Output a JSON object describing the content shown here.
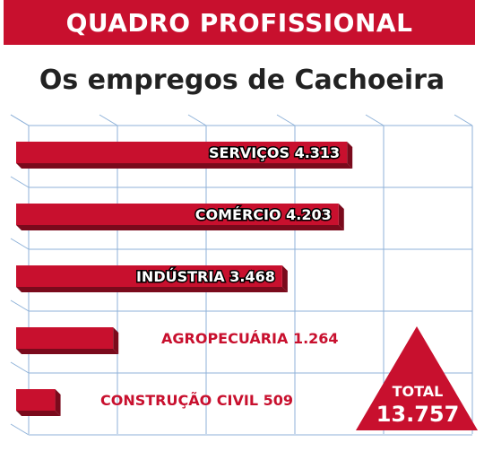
{
  "header": {
    "banner": "QUADRO PROFISSIONAL",
    "title": "Os empregos de Cachoeira"
  },
  "chart_data": {
    "type": "bar",
    "orientation": "horizontal",
    "categories": [
      "SERVIÇOS",
      "COMÉRCIO",
      "INDÚSTRIA",
      "AGROPECUÁRIA",
      "CONSTRUÇÃO CIVIL"
    ],
    "values": [
      4313,
      4203,
      3468,
      1264,
      509
    ],
    "labels": [
      "SERVIÇOS 4.313",
      "COMÉRCIO 4.203",
      "INDÚSTRIA 3.468",
      "AGROPECUÁRIA 1.264",
      "CONSTRUÇÃO CIVIL 509"
    ],
    "xlim": [
      0,
      5000
    ],
    "grid": true
  },
  "total": {
    "label": "TOTAL",
    "value": "13.757"
  },
  "colors": {
    "bar": "#c8102e",
    "bar_dark": "#7a0a1c",
    "grid": "#8fb2d9",
    "label_outer": "#c8102e"
  }
}
